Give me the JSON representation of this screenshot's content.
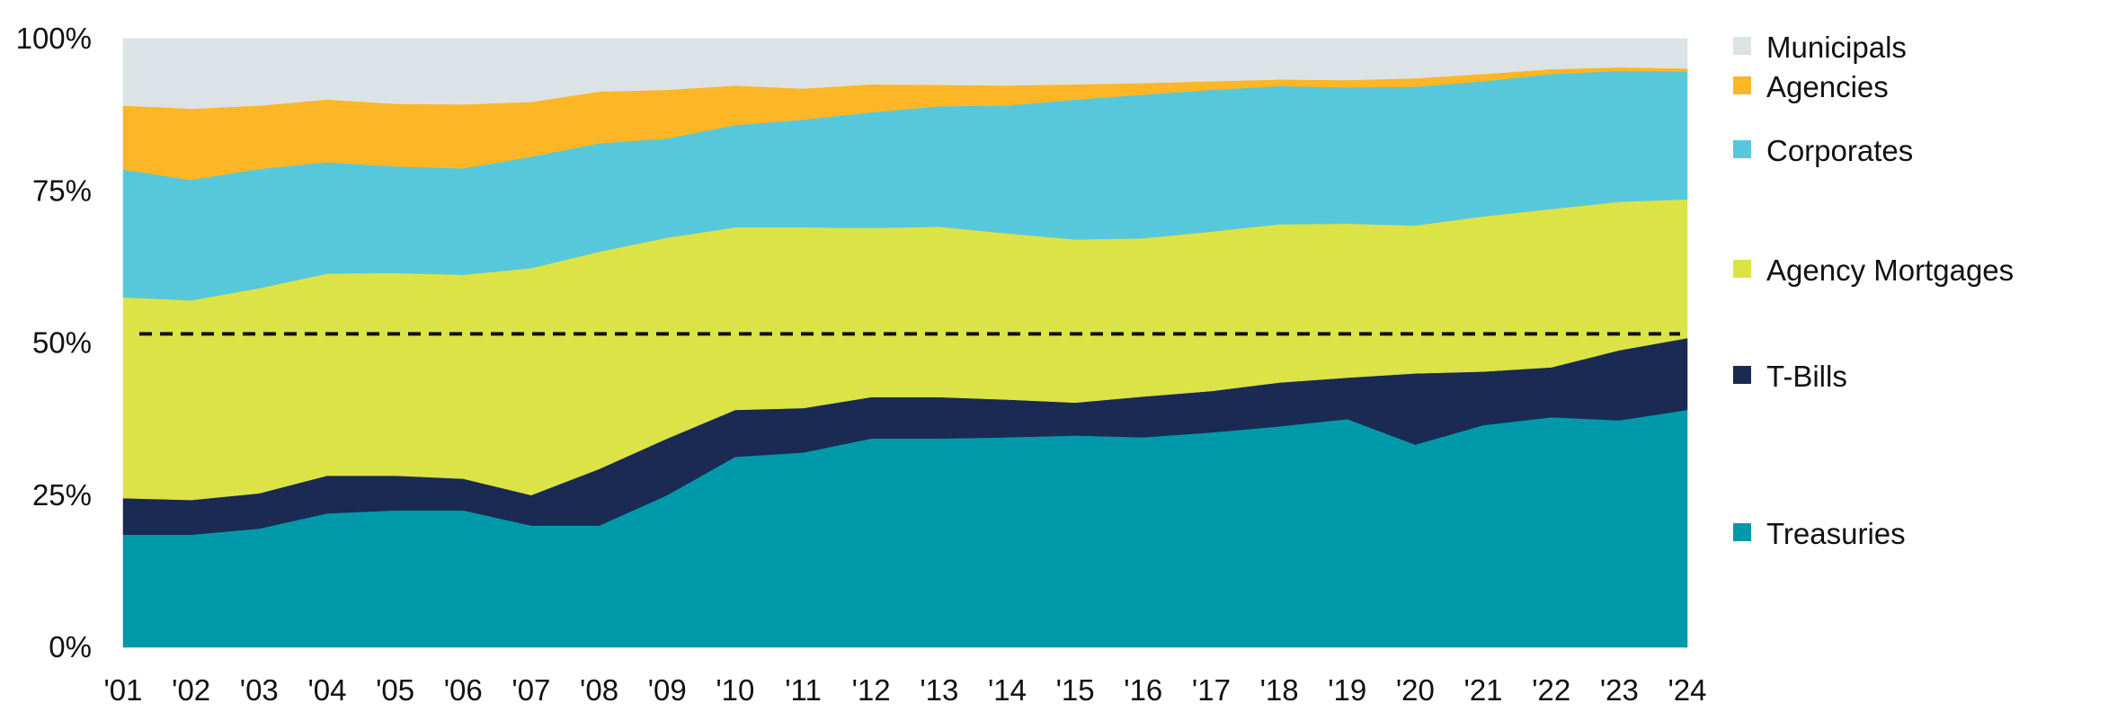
{
  "chart_data": {
    "type": "area",
    "stacked": true,
    "normalized": true,
    "title": "",
    "xlabel": "",
    "ylabel": "",
    "x": [
      "'01",
      "'02",
      "'03",
      "'04",
      "'05",
      "'06",
      "'07",
      "'08",
      "'09",
      "'10",
      "'11",
      "'12",
      "'13",
      "'14",
      "'15",
      "'16",
      "'17",
      "'18",
      "'19",
      "'20",
      "'21",
      "'22",
      "'23",
      "'24"
    ],
    "y_ticks": [
      "0%",
      "25%",
      "50%",
      "75%",
      "100%"
    ],
    "ylim": [
      0,
      100
    ],
    "grid": false,
    "legend_position": "right",
    "reference_line": {
      "value": 51.5,
      "style": "dashed",
      "color": "#111111"
    },
    "series": [
      {
        "name": "Treasuries",
        "color": "#0099AA",
        "values": [
          18.5,
          18.5,
          19.5,
          22,
          22.5,
          22.5,
          20,
          20,
          25,
          31.3,
          32,
          34.3,
          34.3,
          34.5,
          34.8,
          34.5,
          35.3,
          36.3,
          37.5,
          33.3,
          36.5,
          37.8,
          37.3,
          39
        ]
      },
      {
        "name": "T-Bills",
        "color": "#1A2A52",
        "values": [
          6,
          5.7,
          5.8,
          6.2,
          5.7,
          5.2,
          5,
          9.3,
          9.3,
          7.7,
          7.3,
          6.8,
          6.8,
          6.2,
          5.4,
          6.7,
          6.8,
          7.2,
          6.8,
          11.7,
          8.8,
          8.2,
          11.5,
          11.8
        ]
      },
      {
        "name": "Agency Mortgages",
        "color": "#DCE346",
        "values": [
          33,
          32.8,
          33.7,
          33.2,
          33.3,
          33.5,
          37.3,
          35.7,
          33,
          30,
          29.7,
          27.8,
          28,
          27.3,
          26.8,
          26,
          26.2,
          26,
          25.3,
          24.3,
          25.5,
          26,
          24.4,
          22.8
        ]
      },
      {
        "name": "Corporates",
        "color": "#57C8DB",
        "values": [
          21,
          19.8,
          19.6,
          18.3,
          17.5,
          17.5,
          18.3,
          17.8,
          16.3,
          16.8,
          17.7,
          19,
          19.8,
          21,
          23,
          23.6,
          23.3,
          22.7,
          22.4,
          22.8,
          22.2,
          22.2,
          21.5,
          21
        ]
      },
      {
        "name": "Agencies",
        "color": "#FDB626",
        "values": [
          10.5,
          11.7,
          10.4,
          10.3,
          10.3,
          10.5,
          9,
          8.5,
          8,
          6.5,
          5.1,
          4.6,
          3.5,
          3.3,
          2.5,
          1.9,
          1.4,
          1.1,
          1.2,
          1.4,
          1.2,
          0.8,
          0.6,
          0.5
        ]
      },
      {
        "name": "Municipals",
        "color": "#DCE3E6",
        "values": [
          11,
          11.5,
          11,
          10,
          10.7,
          10.8,
          10.4,
          8.7,
          8.4,
          7.7,
          8.2,
          7.5,
          7.6,
          7.7,
          7.5,
          7.3,
          7,
          6.7,
          6.8,
          6.5,
          5.8,
          5,
          4.7,
          4.9
        ]
      }
    ],
    "legend_order": [
      "Municipals",
      "Agencies",
      "Corporates",
      "Agency Mortgages",
      "T-Bills",
      "Treasuries"
    ]
  }
}
